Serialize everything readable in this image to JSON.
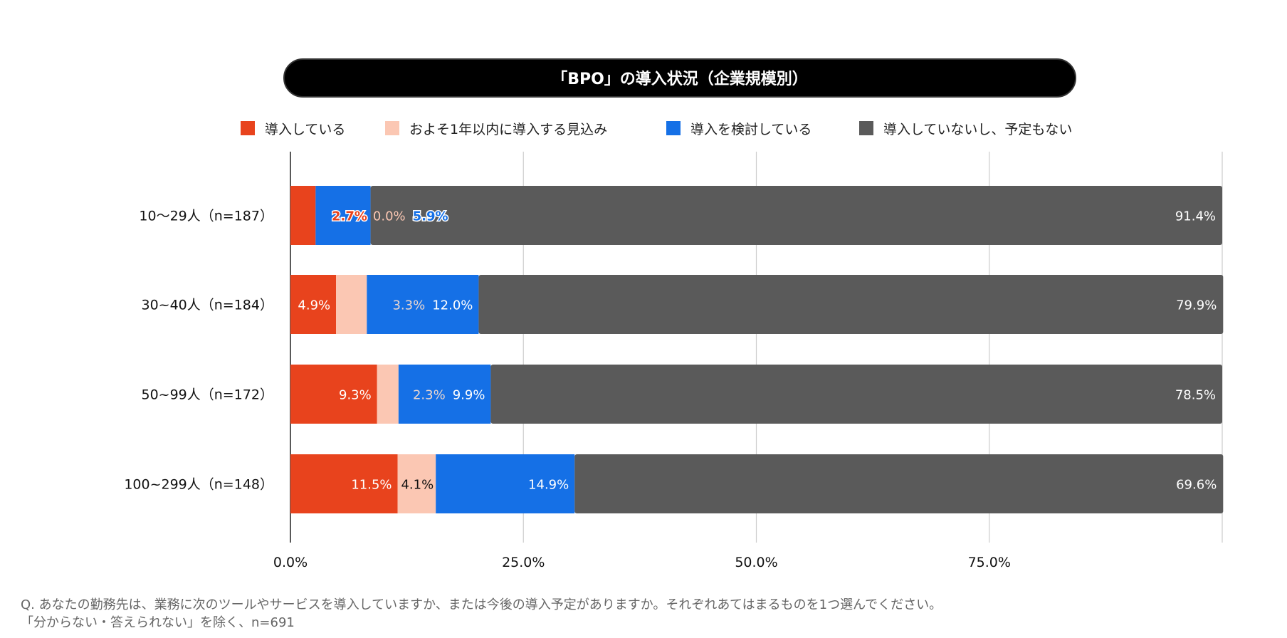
{
  "chart_data": {
    "type": "bar",
    "orientation": "horizontal",
    "stacked": true,
    "title": "「BPO」の導入状況（企業規模別）",
    "categories": [
      "10〜29人（n=187）",
      "30~40人（n=184）",
      "50~99人（n=172）",
      "100~299人（n=148）"
    ],
    "series": [
      {
        "name": "導入している",
        "color": "#e8431d",
        "values": [
          2.7,
          4.9,
          9.3,
          11.5
        ],
        "labels": [
          "2.7%",
          "4.9%",
          "9.3%",
          "11.5%"
        ]
      },
      {
        "name": "およそ1年以内に導入する見込み",
        "color": "#fbc7b3",
        "values": [
          0.0,
          3.3,
          2.3,
          4.1
        ],
        "labels": [
          "0.0%",
          "3.3%",
          "2.3%",
          "4.1%"
        ]
      },
      {
        "name": "導入を検討している",
        "color": "#1570e6",
        "values": [
          5.9,
          12.0,
          9.9,
          14.9
        ],
        "labels": [
          "5.9%",
          "12.0%",
          "9.9%",
          "14.9%"
        ]
      },
      {
        "name": "導入していないし、予定もない",
        "color": "#5a5a5a",
        "values": [
          91.4,
          79.9,
          78.5,
          69.6
        ],
        "labels": [
          "91.4%",
          "79.9%",
          "78.5%",
          "69.6%"
        ]
      }
    ],
    "xlim": [
      0,
      100
    ],
    "xticks": [
      "0.0%",
      "25.0%",
      "50.0%",
      "75.0%"
    ],
    "xtick_values": [
      0,
      25,
      50,
      75
    ],
    "grid": true,
    "legend": "top"
  },
  "footnote": {
    "line1": "Q. あなたの勤務先は、業務に次のツールやサービスを導入していますか、または今後の導入予定がありますか。それぞれあてはまるものを1つ選んでください。",
    "line2": "「分からない・答えられない」を除く、n=691"
  }
}
